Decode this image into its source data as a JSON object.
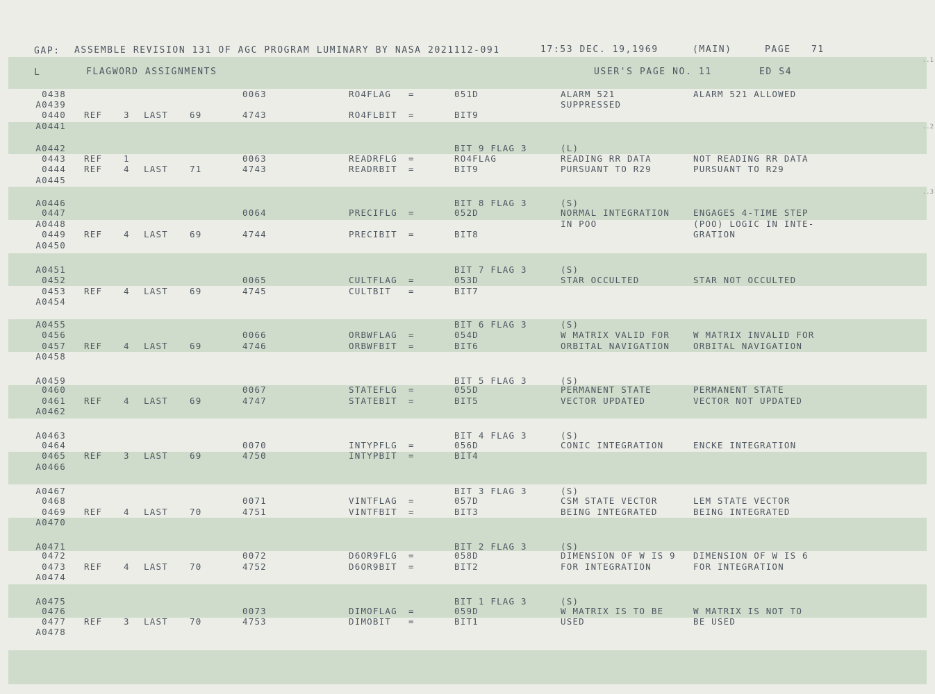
{
  "header": {
    "gap": "GAP:",
    "assemble": "ASSEMBLE REVISION 131 OF AGC PROGRAM LUMINARY BY NASA 2021112-091",
    "time": "17:53 DEC. 19,1969",
    "main": "(MAIN)",
    "page_label": "PAGE",
    "page_number": "71"
  },
  "subheader": {
    "l": "L",
    "title": "FLAGWORD ASSIGNMENTS",
    "users_page": "USER'S PAGE NO. 11",
    "ed": "ED S4"
  },
  "edge_marks": [
    "..1",
    "..2",
    "..3"
  ],
  "rows": [
    {
      "line": "0438",
      "addr": "0063",
      "sym": "RO4FLAG",
      "eq": "=",
      "val": "051D",
      "c1": "ALARM 521",
      "c2": "ALARM 521 ALLOWED"
    },
    {
      "line": "A0439",
      "c1": "SUPPRESSED"
    },
    {
      "line": "0440",
      "ref": "REF",
      "rn": "3",
      "last": "LAST",
      "ln": "69",
      "addr": "4743",
      "sym": "RO4FLBIT",
      "eq": "=",
      "val": "BIT9"
    },
    {
      "line": "A0441"
    },
    {
      "line": "A0442",
      "val": "BIT 9 FLAG 3",
      "c1": "(L)"
    },
    {
      "line": "0443",
      "ref": "REF",
      "rn": "1",
      "addr": "0063",
      "sym": "READRFLG",
      "eq": "=",
      "val": "RO4FLAG",
      "c1": "READING RR DATA",
      "c2": "NOT READING RR DATA"
    },
    {
      "line": "0444",
      "ref": "REF",
      "rn": "4",
      "last": "LAST",
      "ln": "71",
      "addr": "4743",
      "sym": "READRBIT",
      "eq": "=",
      "val": "BIT9",
      "c1": "PURSUANT TO R29",
      "c2": "PURSUANT TO R29"
    },
    {
      "line": "A0445"
    },
    {
      "line": "A0446",
      "val": "BIT 8 FLAG 3",
      "c1": "(S)"
    },
    {
      "line": "0447",
      "addr": "0064",
      "sym": "PRECIFLG",
      "eq": "=",
      "val": "052D",
      "c1": "NORMAL INTEGRATION",
      "c2": "ENGAGES 4-TIME STEP"
    },
    {
      "line": "A0448",
      "c1": "IN POO",
      "c2": "(POO) LOGIC IN INTE-"
    },
    {
      "line": "0449",
      "ref": "REF",
      "rn": "4",
      "last": "LAST",
      "ln": "69",
      "addr": "4744",
      "sym": "PRECIBIT",
      "eq": "=",
      "val": "BIT8",
      "c2": "GRATION"
    },
    {
      "line": "A0450"
    },
    {
      "line": "A0451",
      "val": "BIT 7 FLAG 3",
      "c1": "(S)"
    },
    {
      "line": "0452",
      "addr": "0065",
      "sym": "CULTFLAG",
      "eq": "=",
      "val": "053D",
      "c1": "STAR OCCULTED",
      "c2": "STAR NOT OCCULTED"
    },
    {
      "line": "0453",
      "ref": "REF",
      "rn": "4",
      "last": "LAST",
      "ln": "69",
      "addr": "4745",
      "sym": "CULTBIT",
      "eq": "=",
      "val": "BIT7"
    },
    {
      "line": "A0454"
    },
    {
      "line": "A0455",
      "val": "BIT 6 FLAG 3",
      "c1": "(S)"
    },
    {
      "line": "0456",
      "addr": "0066",
      "sym": "ORBWFLAG",
      "eq": "=",
      "val": "054D",
      "c1": "W MATRIX VALID FOR",
      "c2": "W MATRIX INVALID FOR"
    },
    {
      "line": "0457",
      "ref": "REF",
      "rn": "4",
      "last": "LAST",
      "ln": "69",
      "addr": "4746",
      "sym": "ORBWFBIT",
      "eq": "=",
      "val": "BIT6",
      "c1": "ORBITAL NAVIGATION",
      "c2": "ORBITAL NAVIGATION"
    },
    {
      "line": "A0458"
    },
    {
      "line": "A0459",
      "val": "BIT 5 FLAG 3",
      "c1": "(S)"
    },
    {
      "line": "0460",
      "addr": "0067",
      "sym": "STATEFLG",
      "eq": "=",
      "val": "055D",
      "c1": "PERMANENT STATE",
      "c2": "PERMANENT STATE"
    },
    {
      "line": "0461",
      "ref": "REF",
      "rn": "4",
      "last": "LAST",
      "ln": "69",
      "addr": "4747",
      "sym": "STATEBIT",
      "eq": "=",
      "val": "BIT5",
      "c1": "VECTOR UPDATED",
      "c2": "VECTOR NOT UPDATED"
    },
    {
      "line": "A0462"
    },
    {
      "line": "A0463",
      "val": "BIT 4 FLAG 3",
      "c1": "(S)"
    },
    {
      "line": "0464",
      "addr": "0070",
      "sym": "INTYPFLG",
      "eq": "=",
      "val": "056D",
      "c1": "CONIC INTEGRATION",
      "c2": "ENCKE INTEGRATION"
    },
    {
      "line": "0465",
      "ref": "REF",
      "rn": "3",
      "last": "LAST",
      "ln": "69",
      "addr": "4750",
      "sym": "INTYPBIT",
      "eq": "=",
      "val": "BIT4"
    },
    {
      "line": "A0466"
    },
    {
      "line": "A0467",
      "val": "BIT 3 FLAG 3",
      "c1": "(S)"
    },
    {
      "line": "0468",
      "addr": "0071",
      "sym": "VINTFLAG",
      "eq": "=",
      "val": "057D",
      "c1": "CSM STATE VECTOR",
      "c2": "LEM STATE VECTOR"
    },
    {
      "line": "0469",
      "ref": "REF",
      "rn": "4",
      "last": "LAST",
      "ln": "70",
      "addr": "4751",
      "sym": "VINTFBIT",
      "eq": "=",
      "val": "BIT3",
      "c1": "BEING INTEGRATED",
      "c2": "BEING INTEGRATED"
    },
    {
      "line": "A0470"
    },
    {
      "line": "A0471",
      "val": "BIT 2 FLAG 3",
      "c1": "(S)"
    },
    {
      "line": "0472",
      "addr": "0072",
      "sym": "D6OR9FLG",
      "eq": "=",
      "val": "058D",
      "c1": "DIMENSION OF W IS 9",
      "c2": "DIMENSION OF W IS 6"
    },
    {
      "line": "0473",
      "ref": "REF",
      "rn": "4",
      "last": "LAST",
      "ln": "70",
      "addr": "4752",
      "sym": "D6OR9BIT",
      "eq": "=",
      "val": "BIT2",
      "c1": "FOR INTEGRATION",
      "c2": "FOR INTEGRATION"
    },
    {
      "line": "A0474"
    },
    {
      "line": "A0475",
      "val": "BIT 1 FLAG 3",
      "c1": "(S)"
    },
    {
      "line": "0476",
      "addr": "0073",
      "sym": "DIMOFLAG",
      "eq": "=",
      "val": "059D",
      "c1": "W MATRIX IS TO BE",
      "c2": "W MATRIX IS NOT TO"
    },
    {
      "line": "0477",
      "ref": "REF",
      "rn": "3",
      "last": "LAST",
      "ln": "70",
      "addr": "4753",
      "sym": "DIMOBIT",
      "eq": "=",
      "val": "BIT1",
      "c1": "USED",
      "c2": "BE USED"
    },
    {
      "line": "A0478"
    }
  ]
}
